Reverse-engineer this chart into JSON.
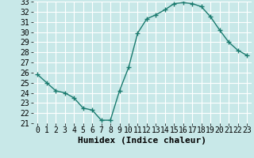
{
  "x": [
    0,
    1,
    2,
    3,
    4,
    5,
    6,
    7,
    8,
    9,
    10,
    11,
    12,
    13,
    14,
    15,
    16,
    17,
    18,
    19,
    20,
    21,
    22,
    23
  ],
  "y": [
    25.8,
    25.0,
    24.2,
    24.0,
    23.5,
    22.5,
    22.3,
    21.3,
    21.3,
    24.2,
    26.5,
    29.9,
    31.3,
    31.7,
    32.2,
    32.8,
    32.9,
    32.8,
    32.5,
    31.5,
    30.2,
    29.0,
    28.2,
    27.7
  ],
  "xlabel": "Humidex (Indice chaleur)",
  "ylim": [
    21,
    33
  ],
  "xlim": [
    -0.5,
    23.5
  ],
  "yticks": [
    21,
    22,
    23,
    24,
    25,
    26,
    27,
    28,
    29,
    30,
    31,
    32,
    33
  ],
  "xticks": [
    0,
    1,
    2,
    3,
    4,
    5,
    6,
    7,
    8,
    9,
    10,
    11,
    12,
    13,
    14,
    15,
    16,
    17,
    18,
    19,
    20,
    21,
    22,
    23
  ],
  "line_color": "#1a7a6e",
  "marker": "+",
  "marker_size": 4,
  "marker_linewidth": 1.0,
  "line_width": 1.0,
  "background_color": "#c8e8e8",
  "grid_color": "#ffffff",
  "xlabel_fontsize": 8,
  "tick_fontsize": 7
}
